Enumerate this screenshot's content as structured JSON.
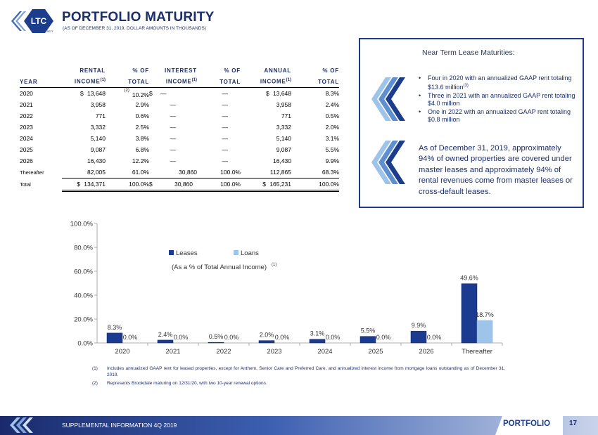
{
  "header": {
    "logo_text": "LTC",
    "logo_sub": "REIT",
    "title": "PORTFOLIO MATURITY",
    "subtitle": "(AS OF DECEMBER 31, 2019, DOLLAR AMOUNTS IN THOUSANDS)"
  },
  "table": {
    "headers_top": [
      "",
      "RENTAL",
      "% OF",
      "INTEREST",
      "% OF",
      "ANNUAL",
      "% OF"
    ],
    "headers_bottom": [
      "YEAR",
      "INCOME",
      "TOTAL",
      "INCOME",
      "TOTAL",
      "INCOME",
      "TOTAL"
    ],
    "note_mark": "(1)",
    "row_note_mark": "(2)",
    "rows": [
      {
        "year": "2020",
        "rental": "13,648",
        "rental_pct": "10.2%",
        "interest": "—",
        "interest_pct": "—",
        "annual": "13,648",
        "annual_pct": "8.3%"
      },
      {
        "year": "2021",
        "rental": "3,958",
        "rental_pct": "2.9%",
        "interest": "—",
        "interest_pct": "—",
        "annual": "3,958",
        "annual_pct": "2.4%"
      },
      {
        "year": "2022",
        "rental": "771",
        "rental_pct": "0.6%",
        "interest": "—",
        "interest_pct": "—",
        "annual": "771",
        "annual_pct": "0.5%"
      },
      {
        "year": "2023",
        "rental": "3,332",
        "rental_pct": "2.5%",
        "interest": "—",
        "interest_pct": "—",
        "annual": "3,332",
        "annual_pct": "2.0%"
      },
      {
        "year": "2024",
        "rental": "5,140",
        "rental_pct": "3.8%",
        "interest": "—",
        "interest_pct": "—",
        "annual": "5,140",
        "annual_pct": "3.1%"
      },
      {
        "year": "2025",
        "rental": "9,087",
        "rental_pct": "6.8%",
        "interest": "—",
        "interest_pct": "—",
        "annual": "9,087",
        "annual_pct": "5.5%"
      },
      {
        "year": "2026",
        "rental": "16,430",
        "rental_pct": "12.2%",
        "interest": "—",
        "interest_pct": "—",
        "annual": "16,430",
        "annual_pct": "9.9%"
      },
      {
        "year": "Thereafter",
        "rental": "82,005",
        "rental_pct": "61.0%",
        "interest": "30,860",
        "interest_pct": "100.0%",
        "annual": "112,865",
        "annual_pct": "68.3%"
      }
    ],
    "total": {
      "year": "Total",
      "rental": "134,371",
      "rental_pct": "100.0%",
      "interest": "30,860",
      "interest_pct": "100.0%",
      "annual": "165,231",
      "annual_pct": "100.0%"
    },
    "currency": "$"
  },
  "callout": {
    "title": "Near Term Lease Maturities:",
    "bullets": [
      {
        "text": "Four in 2020 with an annualized GAAP rent totaling $13.6 million",
        "sup": "(3)"
      },
      {
        "text": "Three in 2021 with an annualized GAAP rent totaling $4.0 million",
        "sup": ""
      },
      {
        "text": "One in 2022 with an annualized GAAP rent totaling $0.8 million",
        "sup": ""
      }
    ],
    "paragraph": "As of December 31, 2019, approximately 94% of owned properties are covered under master leases and approximately 94% of rental revenues come from master leases or cross-default leases."
  },
  "chart_data": {
    "type": "bar",
    "categories": [
      "2020",
      "2021",
      "2022",
      "2023",
      "2024",
      "2025",
      "2026",
      "Thereafter"
    ],
    "series": [
      {
        "name": "Leases",
        "values": [
          8.3,
          2.4,
          0.5,
          2.0,
          3.1,
          5.5,
          9.9,
          49.6
        ],
        "labels": [
          "8.3%",
          "2.4%",
          "0.5%",
          "2.0%",
          "3.1%",
          "5.5%",
          "9.9%",
          "49.6%"
        ],
        "color": "#1a3b8f"
      },
      {
        "name": "Loans",
        "values": [
          0.0,
          0.0,
          0.0,
          0.0,
          0.0,
          0.0,
          0.0,
          18.7
        ],
        "labels": [
          "0.0%",
          "0.0%",
          "0.0%",
          "0.0%",
          "0.0%",
          "0.0%",
          "0.0%",
          "18.7%"
        ],
        "color": "#9ec4ea"
      }
    ],
    "annotation": "(As a % of Total Annual Income)",
    "annotation_sup": "(1)",
    "yticks": [
      "0.0%",
      "20.0%",
      "40.0%",
      "60.0%",
      "80.0%",
      "100.0%"
    ],
    "ylim": [
      0,
      100
    ],
    "grid": false,
    "legend_position": "top-left"
  },
  "footnotes": [
    {
      "num": "(1)",
      "text": "Includes annualized GAAP rent for leased properties, except for Anthem, Senior Care and Preferred Care, and annualized interest income from mortgage loans outstanding as of December 31, 2019."
    },
    {
      "num": "(2)",
      "text": "Represents Brookdale maturing on 12/31/20, with two 10-year renewal options."
    }
  ],
  "footer": {
    "left_text": "SUPPLEMENTAL INFORMATION  4Q 2019",
    "section": "PORTFOLIO",
    "page": "17"
  },
  "colors": {
    "navy": "#1c2f6b",
    "accent": "#1c3c8c",
    "leases": "#1a3b8f",
    "loans": "#9ec4ea"
  }
}
